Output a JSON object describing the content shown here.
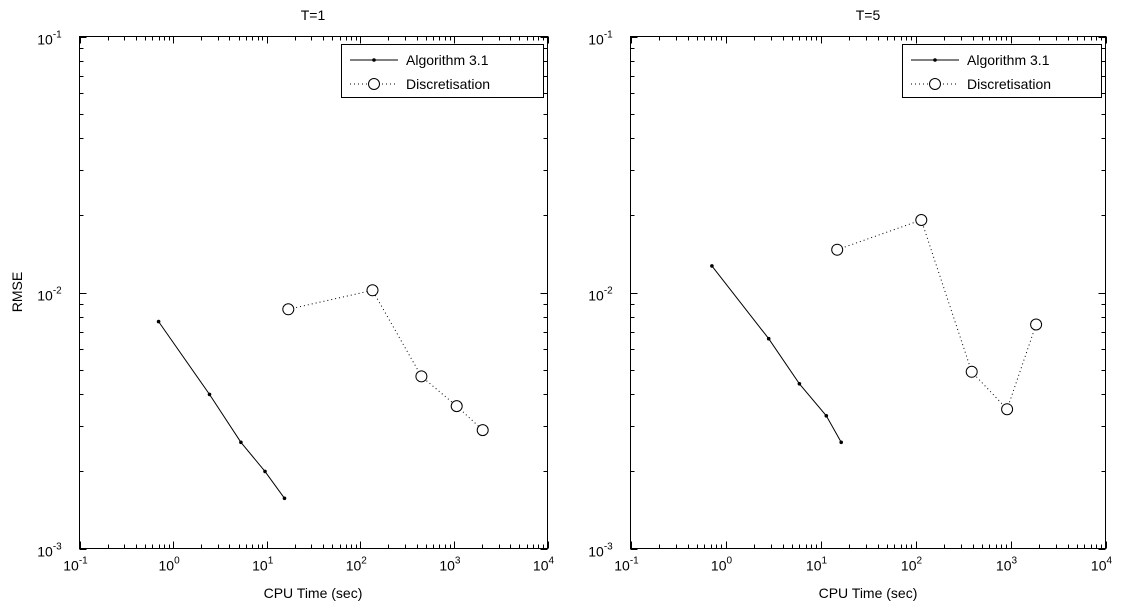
{
  "chart_data": [
    {
      "type": "line",
      "title": "T=1",
      "xlabel": "CPU Time (sec)",
      "ylabel": "RMSE",
      "xscale": "log",
      "yscale": "log",
      "xlim": [
        0.1,
        10000
      ],
      "ylim": [
        0.001,
        0.1
      ],
      "x_ticks": [
        {
          "base": "10",
          "exp": "-1"
        },
        {
          "base": "10",
          "exp": "0"
        },
        {
          "base": "10",
          "exp": "1"
        },
        {
          "base": "10",
          "exp": "2"
        },
        {
          "base": "10",
          "exp": "3"
        },
        {
          "base": "10",
          "exp": "4"
        }
      ],
      "y_ticks": [
        {
          "base": "10",
          "exp": "-3"
        },
        {
          "base": "10",
          "exp": "-2"
        },
        {
          "base": "10",
          "exp": "-1"
        }
      ],
      "grid": false,
      "legend_position": "top-right",
      "series": [
        {
          "name": "Algorithm 3.1",
          "style": "solid-dot",
          "color": "#000000",
          "x": [
            0.7,
            2.45,
            5.3,
            9.6,
            15.5
          ],
          "y": [
            0.0077,
            0.004,
            0.0026,
            0.002,
            0.00157
          ]
        },
        {
          "name": "Discretisation",
          "style": "dotted-circle",
          "color": "#000000",
          "x": [
            17,
            135,
            450,
            1070,
            2030
          ],
          "y": [
            0.0086,
            0.0102,
            0.0047,
            0.0036,
            0.0029
          ]
        }
      ]
    },
    {
      "type": "line",
      "title": "T=5",
      "xlabel": "CPU Time (sec)",
      "ylabel": "",
      "xscale": "log",
      "yscale": "log",
      "xlim": [
        0.1,
        10000
      ],
      "ylim": [
        0.001,
        0.1
      ],
      "x_ticks": [
        {
          "base": "10",
          "exp": "-1"
        },
        {
          "base": "10",
          "exp": "0"
        },
        {
          "base": "10",
          "exp": "1"
        },
        {
          "base": "10",
          "exp": "2"
        },
        {
          "base": "10",
          "exp": "3"
        },
        {
          "base": "10",
          "exp": "4"
        }
      ],
      "y_ticks": [
        {
          "base": "10",
          "exp": "-3"
        },
        {
          "base": "10",
          "exp": "-2"
        },
        {
          "base": "10",
          "exp": "-1"
        }
      ],
      "grid": false,
      "legend_position": "top-right",
      "series": [
        {
          "name": "Algorithm 3.1",
          "style": "solid-dot",
          "color": "#000000",
          "x": [
            0.72,
            2.85,
            6.0,
            11.5,
            16.5
          ],
          "y": [
            0.0127,
            0.0066,
            0.0044,
            0.0033,
            0.0026
          ]
        },
        {
          "name": "Discretisation",
          "style": "dotted-circle",
          "color": "#000000",
          "x": [
            15,
            115,
            390,
            920,
            1860
          ],
          "y": [
            0.0147,
            0.0192,
            0.0049,
            0.0035,
            0.0075
          ]
        }
      ]
    }
  ]
}
